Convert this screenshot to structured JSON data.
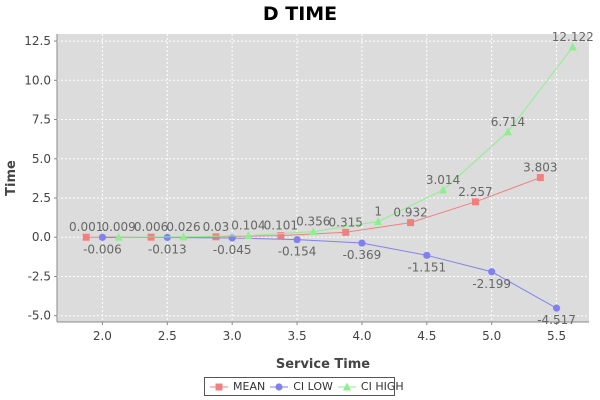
{
  "chart_data": {
    "type": "line",
    "title": "D TIME",
    "xlabel": "Service Time",
    "ylabel": "Time",
    "xlim": [
      1.65,
      5.75
    ],
    "ylim": [
      -5.4,
      12.95
    ],
    "x_ticks": [
      2.0,
      2.5,
      3.0,
      3.5,
      4.0,
      4.5,
      5.0,
      5.5
    ],
    "x_tick_labels": [
      "2.0",
      "2.5",
      "3.0",
      "3.5",
      "4.0",
      "4.5",
      "5.0",
      "5.5"
    ],
    "y_ticks": [
      -5.0,
      -2.5,
      0.0,
      2.5,
      5.0,
      7.5,
      10.0,
      12.5
    ],
    "y_tick_labels": [
      "-5.0",
      "-2.5",
      "0.0",
      "2.5",
      "5.0",
      "7.5",
      "10.0",
      "12.5"
    ],
    "grid": true,
    "legend_position": "bottom",
    "series": [
      {
        "name": "MEAN",
        "color": "#f08080",
        "marker": "square",
        "label_position": "above",
        "x": [
          1.875,
          2.375,
          2.875,
          3.375,
          3.875,
          4.375,
          4.875,
          5.375
        ],
        "values": [
          0.001,
          0.006,
          0.03,
          0.101,
          0.315,
          0.932,
          2.257,
          3.803
        ],
        "labels": [
          "0.001",
          "0.006",
          "0.03",
          "0.101",
          "0.315",
          "0.932",
          "2.257",
          "3.803"
        ]
      },
      {
        "name": "CI LOW",
        "color": "#8080f0",
        "marker": "circle",
        "label_position": "below",
        "x": [
          2.0,
          2.5,
          3.0,
          3.5,
          4.0,
          4.5,
          5.0,
          5.5
        ],
        "values": [
          -0.006,
          -0.013,
          -0.045,
          -0.154,
          -0.369,
          -1.151,
          -2.199,
          -4.517
        ],
        "labels": [
          "-0.006",
          "-0.013",
          "-0.045",
          "-0.154",
          "-0.369",
          "-1.151",
          "-2.199",
          "-4.517"
        ]
      },
      {
        "name": "CI HIGH",
        "color": "#90ee90",
        "marker": "triangle",
        "label_position": "above",
        "x": [
          2.125,
          2.625,
          3.125,
          3.625,
          4.125,
          4.625,
          5.125,
          5.625
        ],
        "values": [
          0.009,
          0.026,
          0.104,
          0.356,
          1,
          3.014,
          6.714,
          12.122
        ],
        "labels": [
          "0.009",
          "0.026",
          "0.104",
          "0.356",
          "1",
          "3.014",
          "6.714",
          "12.122"
        ]
      }
    ]
  }
}
